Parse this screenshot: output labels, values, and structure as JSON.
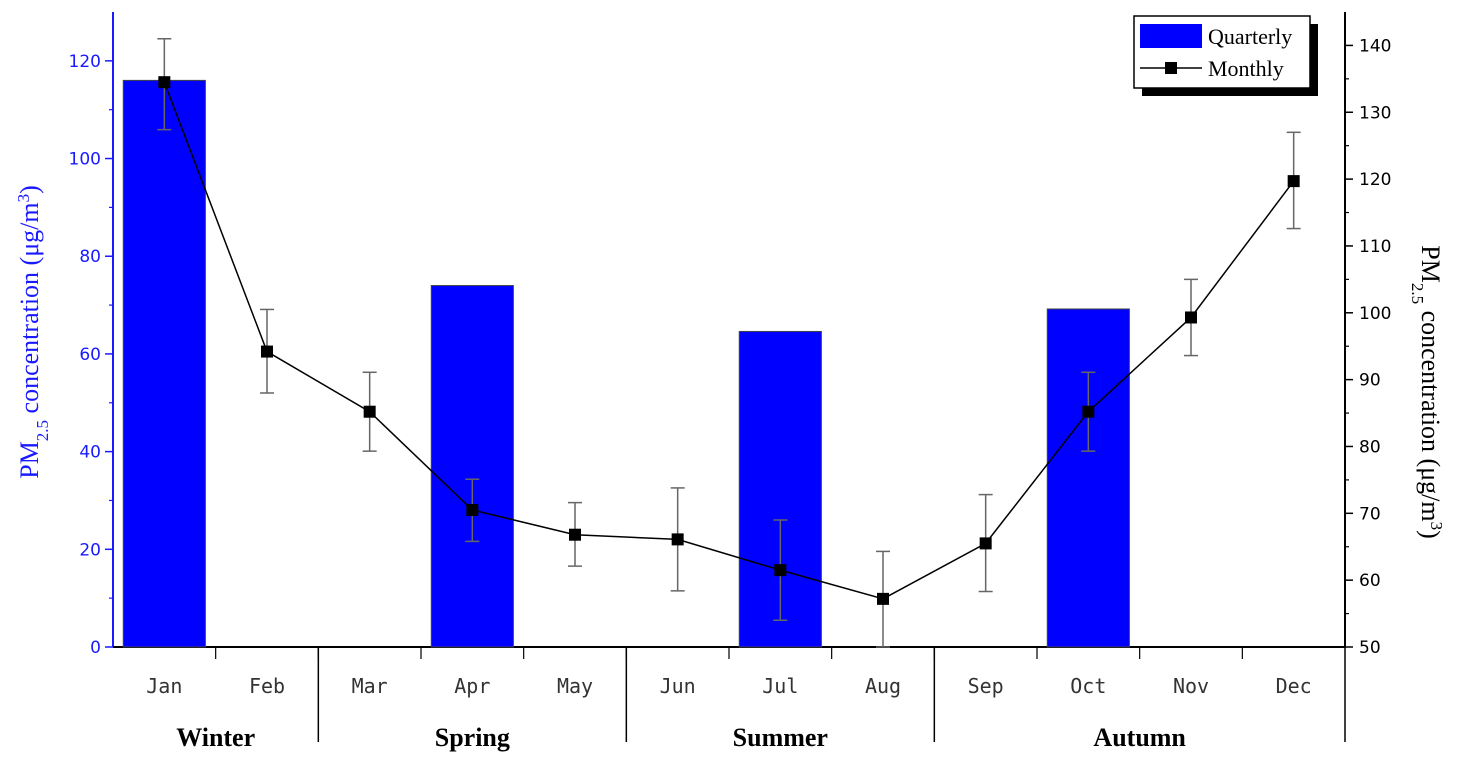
{
  "chart_data": {
    "type": "bar+line",
    "months": [
      "Jan",
      "Feb",
      "Mar",
      "Apr",
      "May",
      "Jun",
      "Jul",
      "Aug",
      "Sep",
      "Oct",
      "Nov",
      "Dec"
    ],
    "seasons": [
      {
        "name": "Winter",
        "months": [
          "Jan",
          "Feb"
        ]
      },
      {
        "name": "Spring",
        "months": [
          "Mar",
          "Apr",
          "May"
        ]
      },
      {
        "name": "Summer",
        "months": [
          "Jun",
          "Jul",
          "Aug"
        ]
      },
      {
        "name": "Autumn",
        "months": [
          "Sep",
          "Oct",
          "Nov",
          "Dec"
        ]
      }
    ],
    "series": [
      {
        "name": "Quarterly",
        "type": "bar",
        "axis": "left",
        "color": "#0000ff",
        "points": [
          {
            "month": "Jan",
            "value": 116
          },
          {
            "month": "Apr",
            "value": 74
          },
          {
            "month": "Jul",
            "value": 64.6
          },
          {
            "month": "Oct",
            "value": 69.2
          }
        ]
      },
      {
        "name": "Monthly",
        "type": "line",
        "axis": "right",
        "color": "#000000",
        "marker": "square",
        "values": [
          134.5,
          94.2,
          85.2,
          70.5,
          66.8,
          66.1,
          61.5,
          57.2,
          65.5,
          85.2,
          99.3,
          119.7
        ],
        "err_hi": [
          141,
          100.5,
          91.1,
          75.1,
          71.6,
          73.8,
          69,
          64.3,
          72.8,
          91.1,
          105,
          127
        ],
        "err_lo": [
          127.4,
          88,
          79.3,
          65.8,
          62.1,
          58.4,
          54,
          50,
          58.3,
          79.3,
          93.6,
          112.6
        ]
      }
    ],
    "left_axis": {
      "label_main": "PM",
      "label_sub": "2.5",
      "label_rest": " concentration (μg/m",
      "label_sup": "3",
      "label_end": ")",
      "min": 0,
      "max": 130,
      "ticks": [
        "0",
        "20",
        "40",
        "60",
        "80",
        "100",
        "120"
      ],
      "color": "#1a1aff"
    },
    "right_axis": {
      "label_main": "PM",
      "label_sub": "2.5",
      "label_rest": " concentration (μg/m",
      "label_sup": "3",
      "label_end": ")",
      "min": 50,
      "max": 145,
      "ticks": [
        "50",
        "60",
        "70",
        "80",
        "90",
        "100",
        "110",
        "120",
        "130",
        "140"
      ]
    },
    "legend": {
      "position": "top-right",
      "entries": [
        {
          "label": "Quarterly",
          "kind": "bar"
        },
        {
          "label": "Monthly",
          "kind": "line"
        }
      ]
    }
  }
}
